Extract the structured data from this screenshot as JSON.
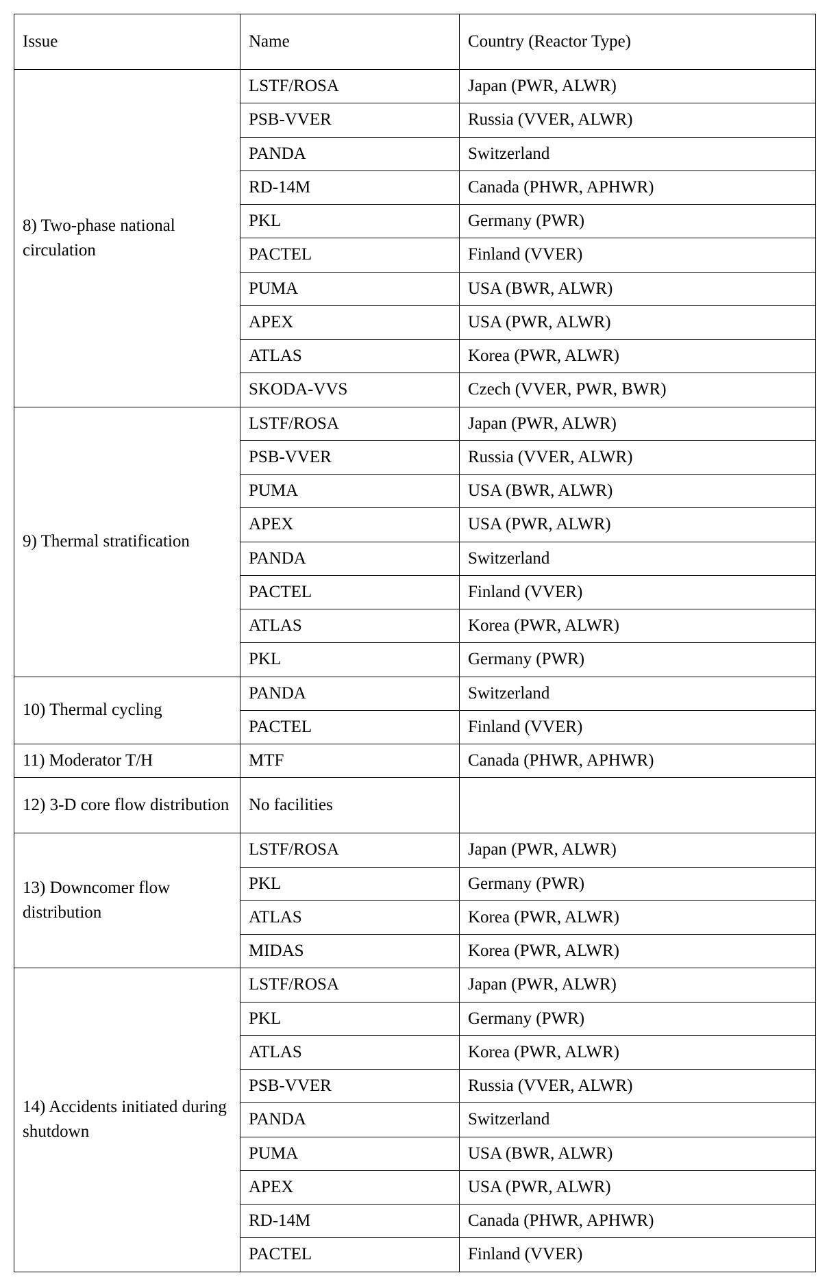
{
  "header": {
    "issue": "Issue",
    "name": "Name",
    "country": "Country (Reactor Type)"
  },
  "groups": [
    {
      "issue": "8) Two-phase national circulation",
      "rows": [
        {
          "name": "LSTF/ROSA",
          "country": "Japan (PWR, ALWR)"
        },
        {
          "name": "PSB-VVER",
          "country": "Russia (VVER, ALWR)"
        },
        {
          "name": "PANDA",
          "country": "Switzerland"
        },
        {
          "name": "RD-14M",
          "country": "Canada (PHWR, APHWR)"
        },
        {
          "name": "PKL",
          "country": "Germany (PWR)"
        },
        {
          "name": "PACTEL",
          "country": "Finland (VVER)"
        },
        {
          "name": "PUMA",
          "country": "USA (BWR, ALWR)"
        },
        {
          "name": "APEX",
          "country": "USA (PWR, ALWR)"
        },
        {
          "name": "ATLAS",
          "country": "Korea (PWR, ALWR)"
        },
        {
          "name": "SKODA-VVS",
          "country": "Czech (VVER, PWR, BWR)"
        }
      ]
    },
    {
      "issue": "9) Thermal stratification",
      "rows": [
        {
          "name": "LSTF/ROSA",
          "country": "Japan (PWR, ALWR)"
        },
        {
          "name": "PSB-VVER",
          "country": "Russia (VVER, ALWR)"
        },
        {
          "name": "PUMA",
          "country": "USA (BWR, ALWR)"
        },
        {
          "name": "APEX",
          "country": "USA (PWR, ALWR)"
        },
        {
          "name": "PANDA",
          "country": "Switzerland"
        },
        {
          "name": "PACTEL",
          "country": "Finland (VVER)"
        },
        {
          "name": "ATLAS",
          "country": "Korea (PWR, ALWR)"
        },
        {
          "name": "PKL",
          "country": "Germany (PWR)"
        }
      ]
    },
    {
      "issue": "10) Thermal cycling",
      "rows": [
        {
          "name": "PANDA",
          "country": "Switzerland"
        },
        {
          "name": "PACTEL",
          "country": "Finland (VVER)"
        }
      ]
    },
    {
      "issue": "11) Moderator T/H",
      "rows": [
        {
          "name": "MTF",
          "country": "Canada (PHWR, APHWR)"
        }
      ]
    },
    {
      "issue": "12) 3-D core flow distribution",
      "tall": true,
      "rows": [
        {
          "name": "No facilities",
          "country": ""
        }
      ]
    },
    {
      "issue": "13) Downcomer flow distribution",
      "rows": [
        {
          "name": "LSTF/ROSA",
          "country": "Japan (PWR, ALWR)"
        },
        {
          "name": "PKL",
          "country": "Germany (PWR)"
        },
        {
          "name": "ATLAS",
          "country": "Korea (PWR, ALWR)"
        },
        {
          "name": "MIDAS",
          "country": "Korea (PWR, ALWR)"
        }
      ]
    },
    {
      "issue": "14) Accidents initiated during shutdown",
      "rows": [
        {
          "name": "LSTF/ROSA",
          "country": "Japan (PWR, ALWR)"
        },
        {
          "name": "PKL",
          "country": "Germany (PWR)"
        },
        {
          "name": "ATLAS",
          "country": "Korea (PWR, ALWR)"
        },
        {
          "name": "PSB-VVER",
          "country": "Russia (VVER, ALWR)"
        },
        {
          "name": "PANDA",
          "country": "Switzerland"
        },
        {
          "name": "PUMA",
          "country": "USA (BWR, ALWR)"
        },
        {
          "name": "APEX",
          "country": "USA (PWR, ALWR)"
        },
        {
          "name": "RD-14M",
          "country": "Canada (PHWR, APHWR)"
        },
        {
          "name": "PACTEL",
          "country": "Finland (VVER)"
        }
      ]
    }
  ]
}
